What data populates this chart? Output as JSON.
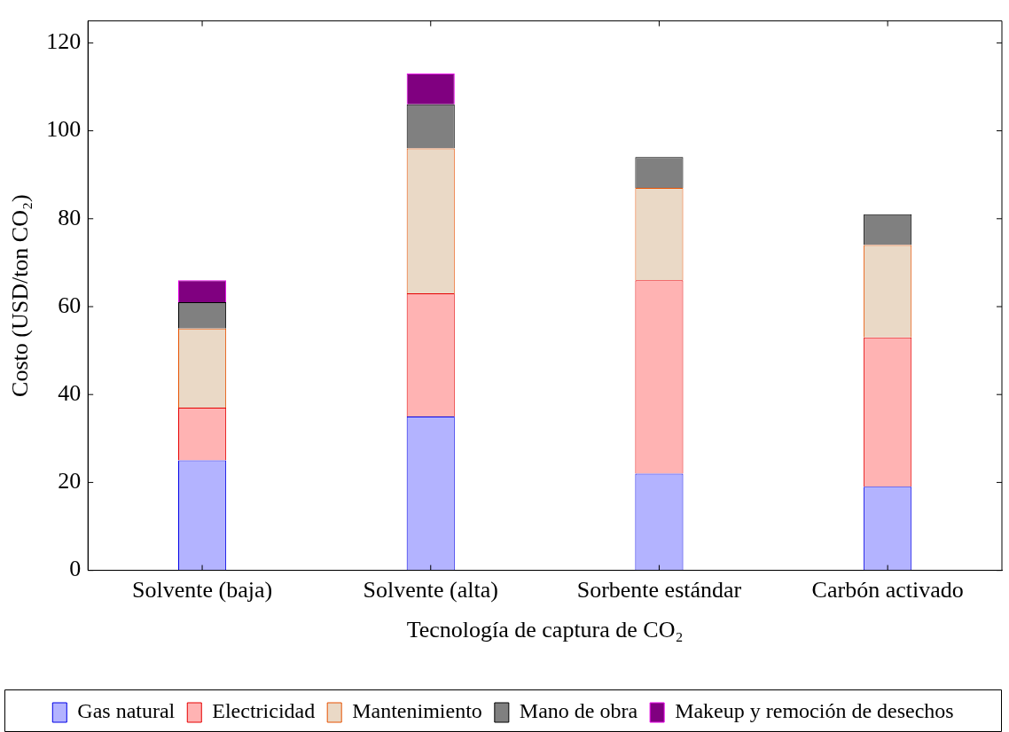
{
  "chart_data": {
    "type": "bar",
    "stacked": true,
    "xlabel": "Tecnología de captura de CO₂",
    "ylabel": "Costo (USD/ton CO₂)",
    "categories": [
      "Solvente (baja)",
      "Solvente (alta)",
      "Sorbente estándar",
      "Carbón activado"
    ],
    "series": [
      {
        "name": "Gas natural",
        "color": "#b3b3ff",
        "values": [
          25,
          35,
          22,
          19
        ]
      },
      {
        "name": "Electricidad",
        "color": "#ffb3b3",
        "values": [
          12,
          28,
          44,
          34
        ]
      },
      {
        "name": "Mantenimiento",
        "color": "#ead9c6",
        "values": [
          18,
          33,
          21,
          21
        ]
      },
      {
        "name": "Mano de obra",
        "color": "#808080",
        "values": [
          6,
          10,
          7,
          7
        ]
      },
      {
        "name": "Makeup y remoción de desechos",
        "color": "#800080",
        "values": [
          5,
          7,
          null,
          null
        ]
      }
    ],
    "ylim": [
      0,
      125
    ],
    "yticks": [
      0,
      20,
      40,
      60,
      80,
      100,
      120
    ],
    "grid": false,
    "legend": "bottom"
  }
}
